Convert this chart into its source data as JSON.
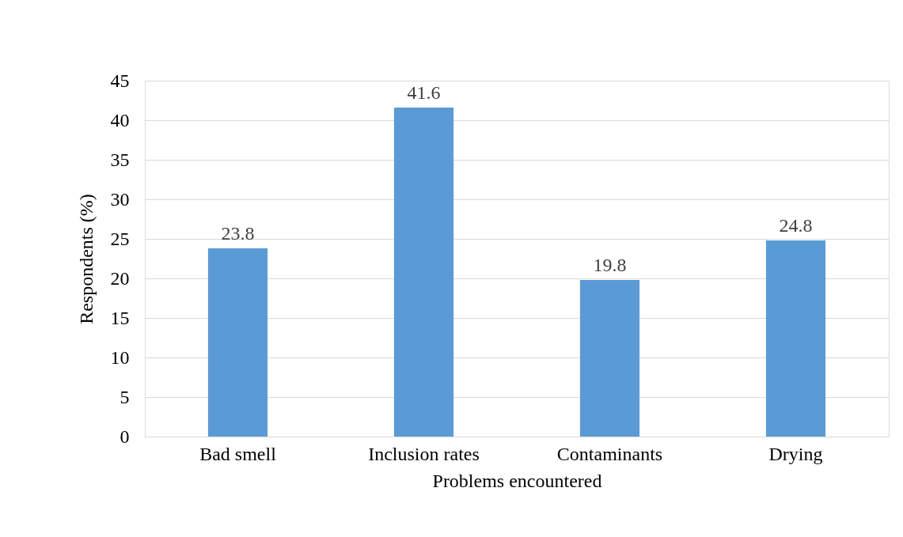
{
  "chart_data": {
    "type": "bar",
    "xlabel": "Problems encountered",
    "ylabel": "Respondents  (%)",
    "categories": [
      "Bad smell",
      "Inclusion rates",
      "Contaminants",
      "Drying"
    ],
    "values": [
      23.8,
      41.6,
      19.8,
      24.8
    ],
    "color": "#5b9bd5",
    "ylim": [
      0,
      45
    ],
    "yticks": [
      0,
      5,
      10,
      15,
      20,
      25,
      30,
      35,
      40,
      45
    ],
    "grid": "y",
    "data_labels": true
  }
}
